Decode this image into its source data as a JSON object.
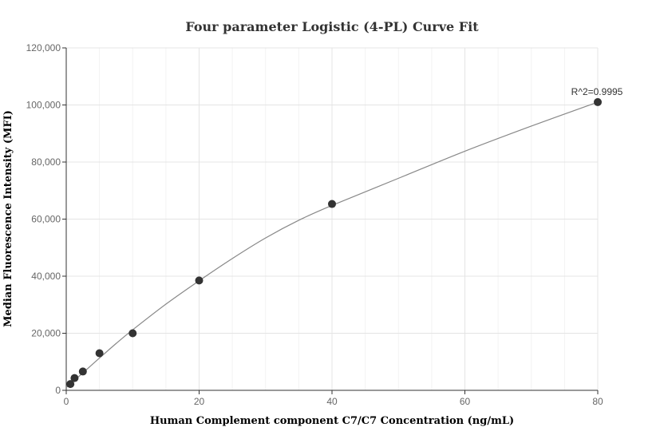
{
  "chart_data": {
    "type": "scatter",
    "title": "Four parameter Logistic (4-PL) Curve Fit",
    "xlabel": "Human Complement component C7/C7 Concentration (ng/mL)",
    "ylabel": "Median Fluorescence Intensity (MFI)",
    "xlim": [
      0,
      80
    ],
    "ylim": [
      0,
      120000
    ],
    "x_ticks": [
      0,
      20,
      40,
      60,
      80
    ],
    "x_tick_labels": [
      "0",
      "20",
      "40",
      "60",
      "80"
    ],
    "y_ticks": [
      0,
      20000,
      40000,
      60000,
      80000,
      100000,
      120000
    ],
    "y_tick_labels": [
      "0",
      "20,000",
      "40,000",
      "60,000",
      "80,000",
      "100,000",
      "120,000"
    ],
    "grid": true,
    "series": [
      {
        "x": [
          0.625,
          1.25,
          2.5,
          5,
          10,
          20,
          40,
          80
        ],
        "y": [
          2200,
          4300,
          6600,
          13000,
          20000,
          38500,
          65300,
          101000
        ],
        "marker_color": "#333333"
      }
    ],
    "fit_curve": {
      "x": [
        0,
        0.625,
        1.25,
        2.5,
        5,
        7.5,
        10,
        15,
        20,
        25,
        30,
        35,
        40,
        50,
        60,
        70,
        80
      ],
      "y": [
        1000,
        2200,
        3500,
        6100,
        11300,
        16400,
        21200,
        30200,
        38400,
        46200,
        53400,
        59600,
        64800,
        74300,
        83800,
        92600,
        101000
      ],
      "color": "#888888"
    },
    "annotation": {
      "text": "R^2=0.9995",
      "x": 80,
      "y": 101000
    }
  }
}
